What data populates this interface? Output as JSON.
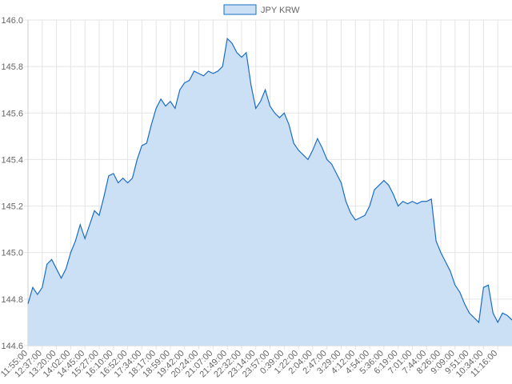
{
  "chart_data": {
    "type": "area",
    "categories": [
      "11:55:00",
      null,
      null,
      "12:37:00",
      null,
      null,
      "13:20:00",
      null,
      null,
      "14:02:00",
      null,
      null,
      "14:45:00",
      null,
      null,
      "15:27:00",
      null,
      null,
      "16:10:00",
      null,
      null,
      "16:52:00",
      null,
      null,
      "17:34:00",
      null,
      null,
      "18:17:00",
      null,
      null,
      "18:59:00",
      null,
      null,
      "19:42:00",
      null,
      null,
      "20:24:00",
      null,
      null,
      "21:07:00",
      null,
      null,
      "21:49:00",
      null,
      null,
      "22:32:00",
      null,
      null,
      "23:14:00",
      null,
      null,
      "23:57:00",
      null,
      null,
      "0:39:00",
      null,
      null,
      "1:22:00",
      null,
      null,
      "2:04:00",
      null,
      null,
      "2:47:00",
      null,
      null,
      "3:29:00",
      null,
      null,
      "4:12:00",
      null,
      null,
      "4:54:00",
      null,
      null,
      "5:36:00",
      null,
      null,
      "6:19:00",
      null,
      null,
      "7:01:00",
      null,
      null,
      "7:44:00",
      null,
      null,
      "8:26:00",
      null,
      null,
      "9:09:00",
      null,
      null,
      "9:51:00",
      null,
      null,
      "10:34:00",
      null,
      null,
      "11:16:00",
      null,
      null,
      null
    ],
    "series": [
      {
        "name": "JPY KRW",
        "color": "#1a6dc6",
        "fill": "#cce0f5",
        "values": [
          144.78,
          144.85,
          144.82,
          144.85,
          144.95,
          144.97,
          144.93,
          144.89,
          144.93,
          145.0,
          145.05,
          145.12,
          145.06,
          145.12,
          145.18,
          145.16,
          145.24,
          145.33,
          145.34,
          145.3,
          145.32,
          145.3,
          145.32,
          145.4,
          145.46,
          145.47,
          145.55,
          145.62,
          145.66,
          145.63,
          145.65,
          145.62,
          145.7,
          145.73,
          145.74,
          145.78,
          145.77,
          145.76,
          145.78,
          145.77,
          145.78,
          145.8,
          145.92,
          145.9,
          145.86,
          145.84,
          145.86,
          145.72,
          145.62,
          145.65,
          145.7,
          145.63,
          145.6,
          145.58,
          145.6,
          145.55,
          145.47,
          145.44,
          145.42,
          145.4,
          145.44,
          145.49,
          145.45,
          145.4,
          145.38,
          145.34,
          145.3,
          145.22,
          145.17,
          145.14,
          145.15,
          145.16,
          145.2,
          145.27,
          145.29,
          145.31,
          145.29,
          145.25,
          145.2,
          145.22,
          145.21,
          145.22,
          145.21,
          145.22,
          145.22,
          145.23,
          145.05,
          145.0,
          144.96,
          144.92,
          144.86,
          144.83,
          144.78,
          144.74,
          144.72,
          144.7,
          144.85,
          144.86,
          144.74,
          144.7,
          144.74,
          144.73,
          144.71
        ]
      }
    ],
    "ylim": [
      144.6,
      146
    ],
    "yticks": [
      144.6,
      144.8,
      {
        "value": 145,
        "label": "145.0"
      },
      145.2,
      145.4,
      145.6,
      145.8,
      {
        "value": 146,
        "label": "146.0"
      }
    ],
    "grid": true,
    "legend": "top"
  }
}
